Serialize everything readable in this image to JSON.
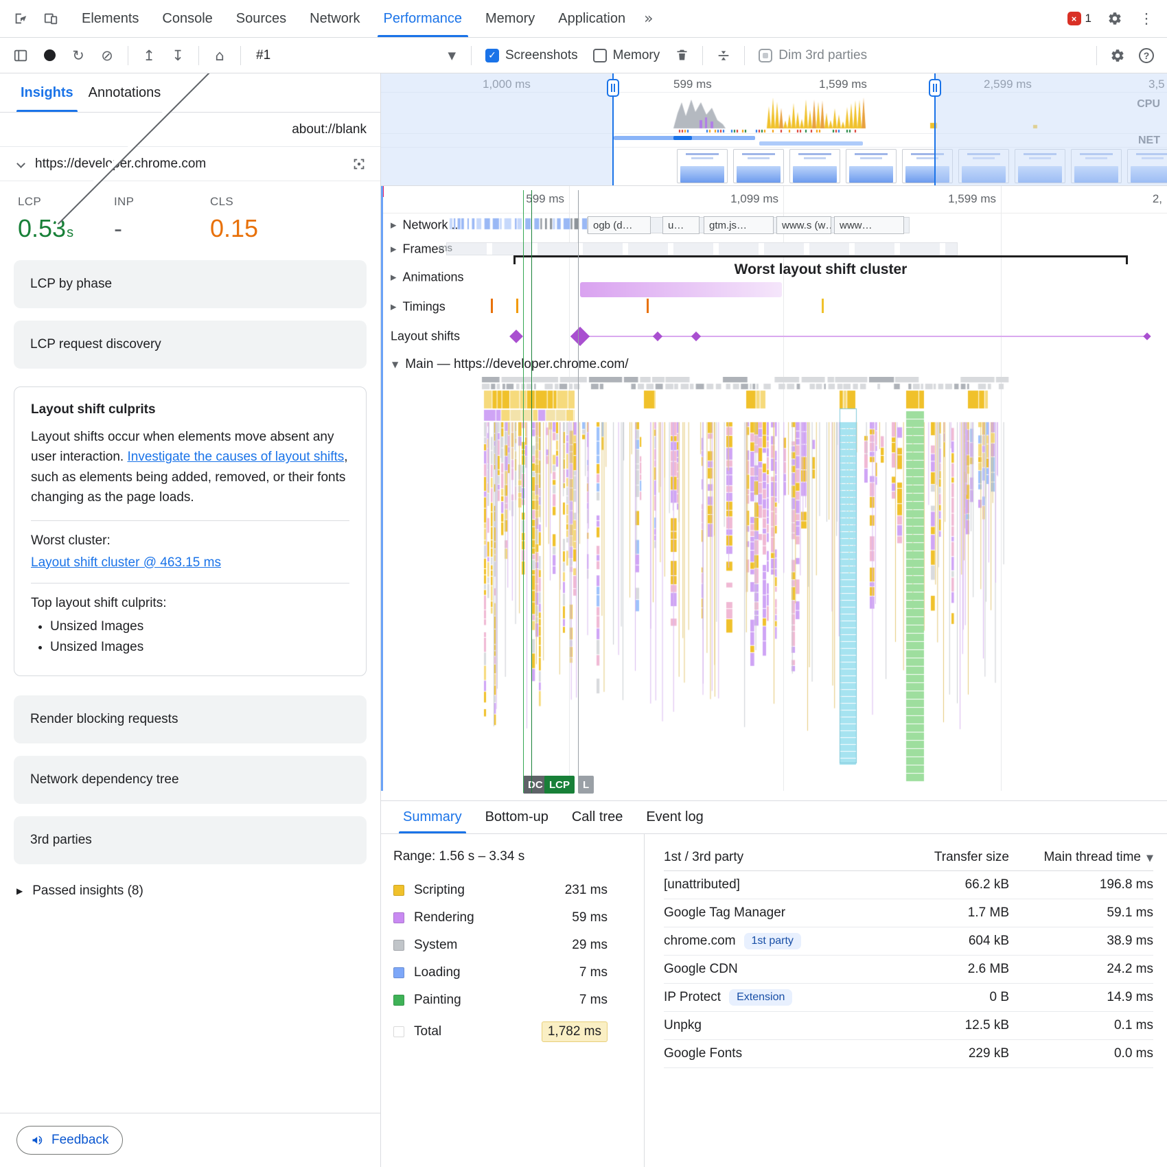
{
  "tabbar": {
    "tabs": [
      "Elements",
      "Console",
      "Sources",
      "Network",
      "Performance",
      "Memory",
      "Application"
    ],
    "overflow": "»",
    "error_count": "1"
  },
  "toolbar": {
    "history": "#1",
    "screenshots": "Screenshots",
    "memory": "Memory",
    "dim": "Dim 3rd parties"
  },
  "sidebar": {
    "tabs": [
      "Insights",
      "Annotations"
    ],
    "frames": [
      "about://blank",
      "https://developer.chrome.com"
    ],
    "metrics": {
      "lcp_label": "LCP",
      "lcp_value": "0.53",
      "lcp_unit": "s",
      "inp_label": "INP",
      "inp_value": "-",
      "cls_label": "CLS",
      "cls_value": "0.15"
    },
    "insight_cards": [
      "LCP by phase",
      "LCP request discovery"
    ],
    "culprits": {
      "title": "Layout shift culprits",
      "intro": "Layout shifts occur when elements move absent any user interaction. ",
      "link": "Investigate the causes of layout shifts",
      "outro": ", such as elements being added, removed, or their fonts changing as the page loads.",
      "worst_label": "Worst cluster:",
      "worst_link": "Layout shift cluster @ 463.15 ms",
      "top_label": "Top layout shift culprits:",
      "bullets": [
        "Unsized Images",
        "Unsized Images"
      ]
    },
    "more_cards": [
      "Render blocking requests",
      "Network dependency tree",
      "3rd parties"
    ],
    "passed": "Passed insights (8)",
    "feedback": "Feedback"
  },
  "overview": {
    "labels": [
      "1,000 ms",
      "599 ms",
      "1,599 ms",
      "2,599 ms",
      "3,5"
    ],
    "cpu": "CPU",
    "net": "NET"
  },
  "ruler": [
    "599 ms",
    "1,099 ms",
    "1,599 ms",
    "2,"
  ],
  "tracks": {
    "network": "Network ..",
    "network_chips": [
      "ogb (d…",
      "u…",
      "gtm.js…",
      "www.s (w…",
      "www…"
    ],
    "frames": "Frames",
    "frames_note": "ms",
    "animations": "Animations",
    "timings": "Timings",
    "layout_shifts": "Layout shifts",
    "cluster": "Worst layout shift cluster",
    "main": "Main — https://developer.chrome.com/",
    "marker_dc": "DC",
    "marker_lcp": "LCP",
    "marker_l": "L"
  },
  "bottom": {
    "tabs": [
      "Summary",
      "Bottom-up",
      "Call tree",
      "Event log"
    ],
    "range": "Range: 1.56 s – 3.34 s",
    "legend": [
      {
        "label": "Scripting",
        "value": "231 ms",
        "color": "#f0c12b"
      },
      {
        "label": "Rendering",
        "value": "59 ms",
        "color": "#c98af2"
      },
      {
        "label": "System",
        "value": "29 ms",
        "color": "#c1c5c9"
      },
      {
        "label": "Loading",
        "value": "7 ms",
        "color": "#7da7f8"
      },
      {
        "label": "Painting",
        "value": "7 ms",
        "color": "#3fb257"
      },
      {
        "label": "Total",
        "value": "1,782 ms",
        "color": "#ffffff"
      }
    ],
    "table": {
      "col_party": "1st / 3rd party",
      "col_size": "Transfer size",
      "col_time": "Main thread time",
      "rows": [
        {
          "name": "[unattributed]",
          "badge": "",
          "size": "66.2 kB",
          "time": "196.8 ms"
        },
        {
          "name": "Google Tag Manager",
          "badge": "",
          "size": "1.7 MB",
          "time": "59.1 ms"
        },
        {
          "name": "chrome.com",
          "badge": "1st party",
          "size": "604 kB",
          "time": "38.9 ms"
        },
        {
          "name": "Google CDN",
          "badge": "",
          "size": "2.6 MB",
          "time": "24.2 ms"
        },
        {
          "name": "IP Protect",
          "badge": "Extension",
          "size": "0 B",
          "time": "14.9 ms"
        },
        {
          "name": "Unpkg",
          "badge": "",
          "size": "12.5 kB",
          "time": "0.1 ms"
        },
        {
          "name": "Google Fonts",
          "badge": "",
          "size": "229 kB",
          "time": "0.0 ms"
        }
      ]
    }
  },
  "flame": {
    "palette": {
      "scripting": "#f0c12b",
      "scripting_light": "#f6da7c",
      "rendering": "#cfa4f5",
      "pink": "#f0b9d4",
      "system": "#d8dadd",
      "system_dark": "#aeb2b8",
      "loading": "#9ec2fb",
      "painting": "#9ede9e",
      "teal": "#a6e3f0"
    }
  }
}
